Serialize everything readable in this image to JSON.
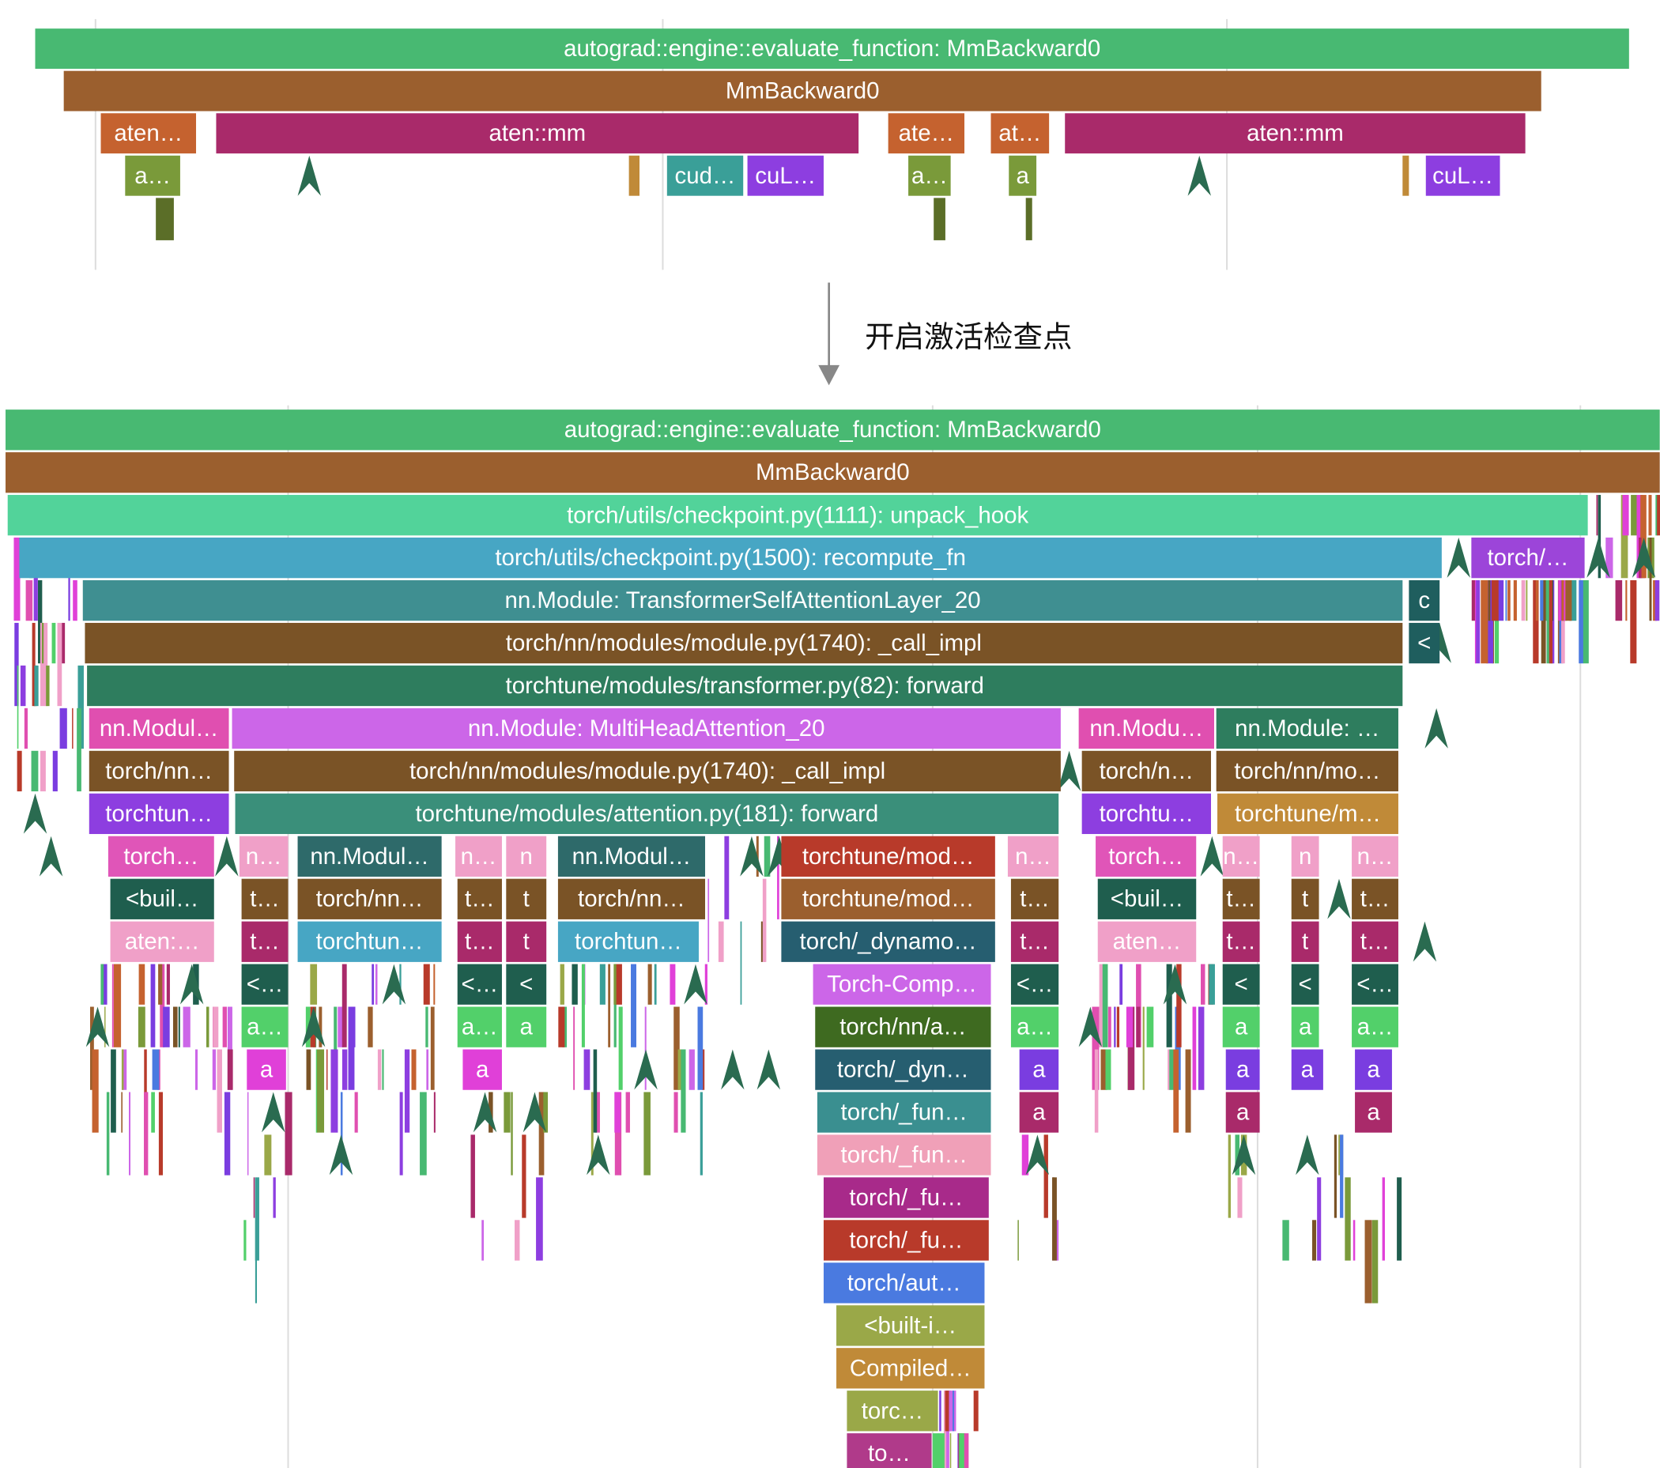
{
  "top": {
    "rows": [
      [
        "autograd::engine::evaluate_function: MmBackward0"
      ],
      [
        "MmBackward0"
      ],
      [
        "aten…",
        "aten::mm",
        "ate…",
        "at…",
        "aten::mm"
      ],
      [
        "a…",
        "cud…",
        "cuL…",
        "a…",
        "a",
        "cuL…"
      ]
    ]
  },
  "caption": "开启激活检查点",
  "bottom": {
    "rows": [
      [
        "autograd::engine::evaluate_function: MmBackward0"
      ],
      [
        "MmBackward0"
      ],
      [
        "torch/utils/checkpoint.py(1111): unpack_hook"
      ],
      [
        "torch/utils/checkpoint.py(1500): recompute_fn",
        "torch/…"
      ],
      [
        "nn.Module: TransformerSelfAttentionLayer_20",
        "c"
      ],
      [
        "torch/nn/modules/module.py(1740): _call_impl",
        "<"
      ],
      [
        "torchtune/modules/transformer.py(82): forward"
      ],
      [
        "nn.Modul…",
        "nn.Module: MultiHeadAttention_20",
        "nn.Modu…",
        "nn.Module: …"
      ],
      [
        "torch/nn…",
        "torch/nn/modules/module.py(1740): _call_impl",
        "torch/n…",
        "torch/nn/mo…"
      ],
      [
        "torchtun…",
        "torchtune/modules/attention.py(181): forward",
        "torchtu…",
        "torchtune/m…"
      ],
      [
        "torch…",
        "n…",
        "nn.Modul…",
        "n…",
        "n",
        "nn.Modul…",
        "torchtune/mod…",
        "n…",
        "torch…",
        "n…",
        "n",
        "n…"
      ],
      [
        "<buil…",
        "t…",
        "torch/nn…",
        "t…",
        "t",
        "torch/nn…",
        "torchtune/mod…",
        "t…",
        "<buil…",
        "t…",
        "t",
        "t…"
      ],
      [
        "aten:…",
        "t…",
        "torchtun…",
        "t…",
        "t",
        "torchtun…",
        "torch/_dynamo…",
        "t…",
        "aten…",
        "t…",
        "t",
        "t…"
      ],
      [
        "<…",
        "<…",
        "<",
        "Torch-Comp…",
        "<…",
        "<",
        "<",
        "<…"
      ],
      [
        "a…",
        "a…",
        "a",
        "torch/nn/a…",
        "a…",
        "a",
        "a",
        "a…"
      ],
      [
        "a",
        "a",
        "torch/_dyn…",
        "a",
        "a",
        "a",
        "a"
      ],
      [
        "torch/_fun…",
        "a",
        "a",
        "a"
      ],
      [
        "torch/_fun…"
      ],
      [
        "torch/_fu…"
      ],
      [
        "torch/_fu…"
      ],
      [
        "torch/aut…"
      ],
      [
        "<built-i…"
      ],
      [
        "Compiled…"
      ],
      [
        "torc…"
      ],
      [
        "to…"
      ]
    ]
  }
}
